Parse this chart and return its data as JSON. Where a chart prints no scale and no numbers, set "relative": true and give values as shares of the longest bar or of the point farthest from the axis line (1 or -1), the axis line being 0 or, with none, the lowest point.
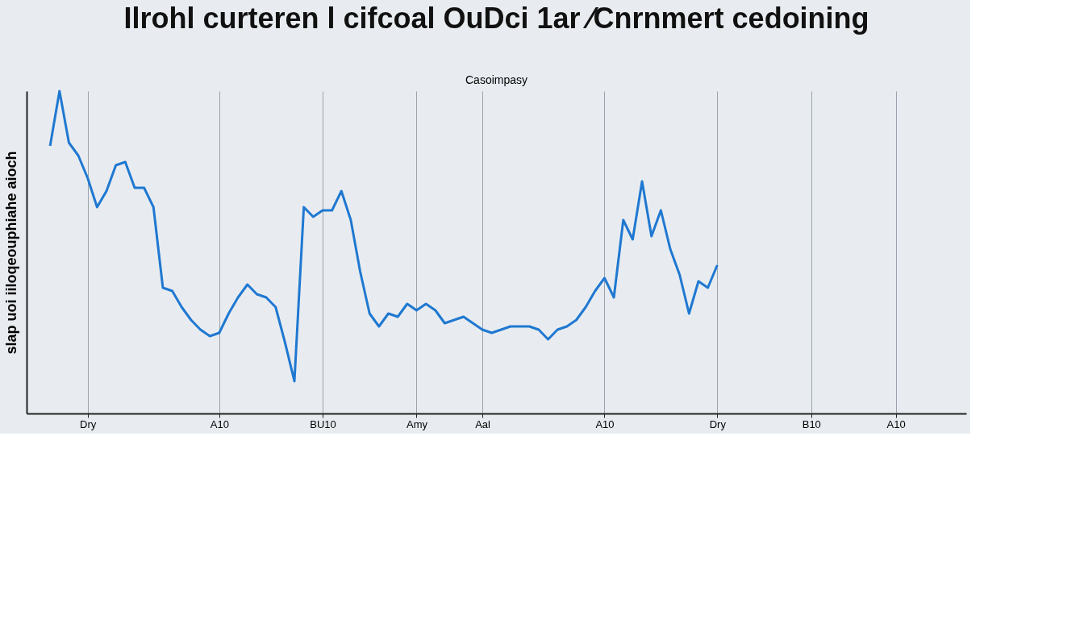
{
  "chart_data": {
    "type": "line",
    "title": "Ilrohl curteren l cifcoal OuDci 1ar ⁄Cnrnmert cedoining",
    "subtitle": "Casoimpasy",
    "ylabel": "slap uoi iiloqeouphiahe aioch",
    "relative": true,
    "grid": "x",
    "marker": "none",
    "line_style": "solid",
    "categories": [
      null,
      null,
      null,
      null,
      null,
      null,
      "Dry",
      null,
      null,
      null,
      null,
      null,
      null,
      null,
      null,
      null,
      null,
      null,
      null,
      null,
      "A10",
      null,
      null,
      null,
      null,
      null,
      null,
      null,
      null,
      null,
      null,
      "BU10",
      null,
      null,
      null,
      null,
      null,
      null,
      null,
      null,
      null,
      "Amy",
      null,
      null,
      null,
      null,
      null,
      null,
      "Aal",
      null,
      null,
      null,
      null,
      null,
      null,
      null,
      null,
      null,
      null,
      null,
      null,
      "A10",
      null,
      null,
      null,
      null,
      null,
      null,
      null,
      null,
      null,
      null,
      null,
      "Dry",
      null,
      null,
      null,
      null,
      null,
      null,
      null,
      null,
      null,
      "B10",
      null,
      null,
      null,
      null,
      null,
      null,
      null,
      null,
      "A10",
      null,
      null,
      null,
      null,
      null,
      null,
      null
    ],
    "series": [
      {
        "color": "#1f78d1",
        "values": [
          null,
          null,
          0.83,
          1.0,
          0.84,
          0.8,
          0.73,
          0.64,
          0.69,
          0.77,
          0.78,
          0.7,
          0.7,
          0.64,
          0.39,
          0.38,
          0.33,
          0.29,
          0.26,
          0.24,
          0.25,
          0.31,
          0.36,
          0.4,
          0.37,
          0.36,
          0.33,
          0.22,
          0.1,
          0.64,
          0.61,
          0.63,
          0.63,
          0.69,
          0.6,
          0.44,
          0.31,
          0.27,
          0.31,
          0.3,
          0.34,
          0.32,
          0.34,
          0.32,
          0.28,
          0.29,
          0.3,
          0.28,
          0.26,
          0.25,
          0.26,
          0.27,
          0.27,
          0.27,
          0.26,
          0.23,
          0.26,
          0.27,
          0.29,
          0.33,
          0.38,
          0.42,
          0.36,
          0.6,
          0.54,
          0.72,
          0.55,
          0.63,
          0.51,
          0.43,
          0.31,
          0.41,
          0.39,
          0.46,
          null,
          null,
          null,
          null,
          null,
          null,
          null,
          null,
          null,
          null,
          null,
          null,
          null,
          null,
          null,
          null,
          null,
          null,
          null,
          null,
          null,
          null,
          null,
          null,
          null,
          null
        ]
      }
    ]
  }
}
